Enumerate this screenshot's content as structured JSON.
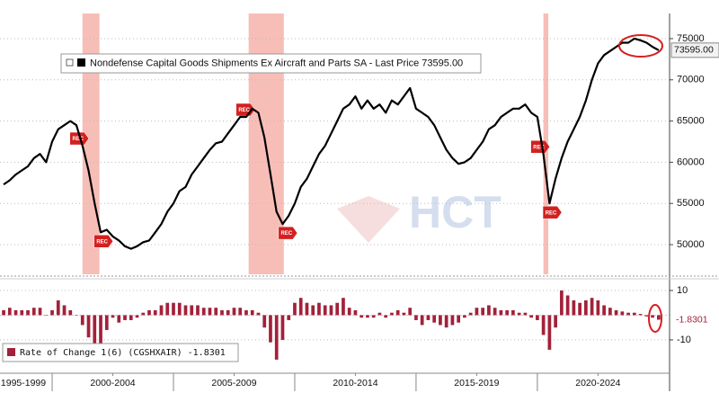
{
  "chart_data": [
    {
      "type": "line",
      "xlim": [
        1997.85,
        2025.45
      ],
      "ylim": [
        46400,
        78050
      ],
      "yticks": [
        50000,
        55000,
        60000,
        65000,
        70000,
        75000
      ],
      "grid": true,
      "watermark": "HCT",
      "recessions": [
        {
          "start": 2001.25,
          "end": 2001.95,
          "label": "REC"
        },
        {
          "start": 2008.1,
          "end": 2009.55,
          "label": "REC"
        },
        {
          "start": 2020.25,
          "end": 2020.45,
          "label": "REC"
        }
      ],
      "recession_color": "#f4a8a0",
      "x": [
        1998,
        1998.25,
        1998.5,
        1998.75,
        1999,
        1999.25,
        1999.5,
        1999.75,
        2000,
        2000.25,
        2000.5,
        2000.75,
        2001,
        2001.25,
        2001.5,
        2001.75,
        2002,
        2002.25,
        2002.5,
        2002.75,
        2003,
        2003.25,
        2003.5,
        2003.75,
        2004,
        2004.25,
        2004.5,
        2004.75,
        2005,
        2005.25,
        2005.5,
        2005.75,
        2006,
        2006.25,
        2006.5,
        2006.75,
        2007,
        2007.25,
        2007.5,
        2007.75,
        2008,
        2008.25,
        2008.5,
        2008.75,
        2009,
        2009.25,
        2009.5,
        2009.75,
        2010,
        2010.25,
        2010.5,
        2010.75,
        2011,
        2011.25,
        2011.5,
        2011.75,
        2012,
        2012.25,
        2012.5,
        2012.75,
        2013,
        2013.25,
        2013.5,
        2013.75,
        2014,
        2014.25,
        2014.5,
        2014.75,
        2015,
        2015.25,
        2015.5,
        2015.75,
        2016,
        2016.25,
        2016.5,
        2016.75,
        2017,
        2017.25,
        2017.5,
        2017.75,
        2018,
        2018.25,
        2018.5,
        2018.75,
        2019,
        2019.25,
        2019.5,
        2019.75,
        2020,
        2020.25,
        2020.5,
        2020.75,
        2021,
        2021.25,
        2021.5,
        2021.75,
        2022,
        2022.25,
        2022.5,
        2022.75,
        2023,
        2023.25,
        2023.5,
        2023.75,
        2024,
        2024.25,
        2024.5,
        2024.75,
        2025
      ],
      "series": [
        {
          "name": "Nondefense Capital Goods Shipments Ex Aircraft and Parts SA - Last Price 73595.00",
          "color": "#000000",
          "values": [
            57300,
            57800,
            58500,
            59000,
            59500,
            60500,
            61000,
            60000,
            62500,
            64000,
            64500,
            65000,
            64500,
            62000,
            59000,
            55000,
            51500,
            51800,
            51000,
            50500,
            49800,
            49500,
            49800,
            50300,
            50500,
            51500,
            52500,
            54000,
            55000,
            56500,
            57000,
            58500,
            59500,
            60500,
            61500,
            62300,
            62500,
            63500,
            64500,
            65500,
            65500,
            66500,
            66000,
            63000,
            58500,
            54000,
            52500,
            53500,
            55000,
            57000,
            58000,
            59500,
            61000,
            62000,
            63500,
            65000,
            66500,
            67000,
            68000,
            66500,
            67500,
            66500,
            67000,
            66000,
            67500,
            67000,
            68000,
            69000,
            66500,
            66000,
            65500,
            64500,
            63000,
            61500,
            60500,
            59800,
            60000,
            60500,
            61500,
            62500,
            64000,
            64500,
            65500,
            66000,
            66500,
            66500,
            67000,
            66000,
            65500,
            61000,
            55000,
            58000,
            60500,
            62500,
            64000,
            65500,
            67500,
            70000,
            72000,
            73000,
            73500,
            74000,
            74500,
            74500,
            75000,
            74800,
            74500,
            74000,
            73595
          ],
          "last_value": {
            "value": 73595,
            "label": "73595.00"
          }
        }
      ]
    },
    {
      "type": "bar",
      "xlim": [
        1997.85,
        2025.45
      ],
      "ylim": [
        -23.5,
        14
      ],
      "yticks": [
        -10,
        10
      ],
      "grid": true,
      "xticks": [
        {
          "value": 1997.5,
          "label": "1995-1999"
        },
        {
          "value": 2002.5,
          "label": "2000-2004"
        },
        {
          "value": 2007.5,
          "label": "2005-2009"
        },
        {
          "value": 2012.5,
          "label": "2010-2014"
        },
        {
          "value": 2017.5,
          "label": "2015-2019"
        },
        {
          "value": 2022.5,
          "label": "2020-2024"
        }
      ],
      "x": [
        1998,
        1998.25,
        1998.5,
        1998.75,
        1999,
        1999.25,
        1999.5,
        1999.75,
        2000,
        2000.25,
        2000.5,
        2000.75,
        2001,
        2001.25,
        2001.5,
        2001.75,
        2002,
        2002.25,
        2002.5,
        2002.75,
        2003,
        2003.25,
        2003.5,
        2003.75,
        2004,
        2004.25,
        2004.5,
        2004.75,
        2005,
        2005.25,
        2005.5,
        2005.75,
        2006,
        2006.25,
        2006.5,
        2006.75,
        2007,
        2007.25,
        2007.5,
        2007.75,
        2008,
        2008.25,
        2008.5,
        2008.75,
        2009,
        2009.25,
        2009.5,
        2009.75,
        2010,
        2010.25,
        2010.5,
        2010.75,
        2011,
        2011.25,
        2011.5,
        2011.75,
        2012,
        2012.25,
        2012.5,
        2012.75,
        2013,
        2013.25,
        2013.5,
        2013.75,
        2014,
        2014.25,
        2014.5,
        2014.75,
        2015,
        2015.25,
        2015.5,
        2015.75,
        2016,
        2016.25,
        2016.5,
        2016.75,
        2017,
        2017.25,
        2017.5,
        2017.75,
        2018,
        2018.25,
        2018.5,
        2018.75,
        2019,
        2019.25,
        2019.5,
        2019.75,
        2020,
        2020.25,
        2020.5,
        2020.75,
        2021,
        2021.25,
        2021.5,
        2021.75,
        2022,
        2022.25,
        2022.5,
        2022.75,
        2023,
        2023.25,
        2023.5,
        2023.75,
        2024,
        2024.25,
        2024.5,
        2024.75,
        2025
      ],
      "series": [
        {
          "name": "Rate of Change 1(6) (CGSHXAIR) -1.8301",
          "color": "#a3213a",
          "values": [
            2,
            3,
            2,
            2,
            2,
            3,
            3,
            0,
            2,
            6,
            4,
            2,
            0,
            -4,
            -9,
            -12,
            -13,
            -6,
            -1,
            -3,
            -2,
            -2,
            -1,
            1,
            2,
            2,
            4,
            5,
            5,
            5,
            4,
            4,
            4,
            3,
            3,
            3,
            2,
            2,
            3,
            3,
            2,
            2,
            1,
            -5,
            -11,
            -18,
            -10,
            -2,
            5,
            7,
            5,
            4,
            5,
            4,
            4,
            5,
            7,
            3,
            2,
            -1,
            -1,
            -1,
            1,
            -1,
            1,
            2,
            1,
            3,
            -2,
            -4,
            -2,
            -3,
            -4,
            -5,
            -4,
            -3,
            -1,
            1,
            3,
            3,
            4,
            3,
            2,
            2,
            2,
            1,
            1,
            -1,
            -2,
            -8,
            -14,
            -5,
            10,
            8,
            6,
            5,
            6,
            7,
            6,
            4,
            3,
            2,
            1.5,
            1,
            1,
            0.5,
            -0.5,
            -1,
            -1.8301
          ],
          "last_value": {
            "value": -1.8301,
            "label": "-1.8301"
          }
        }
      ]
    }
  ]
}
